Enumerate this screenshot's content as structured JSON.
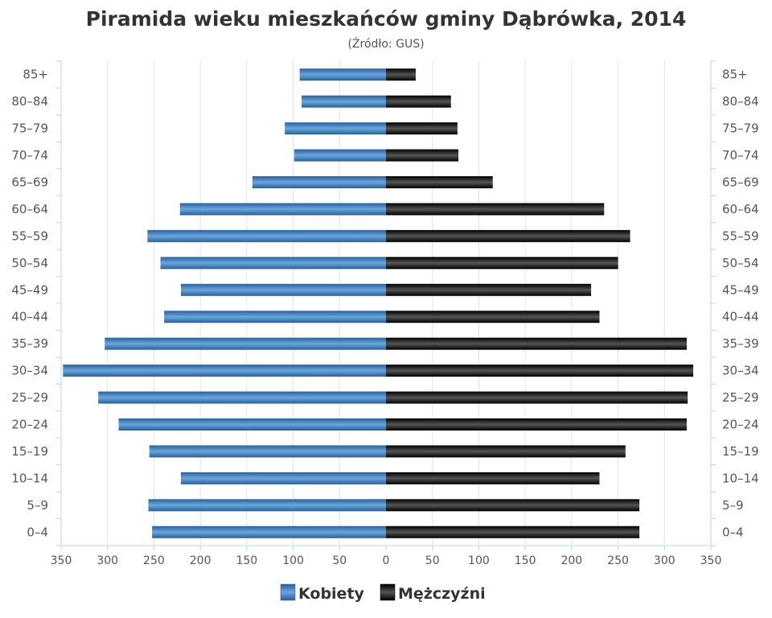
{
  "chart_data": {
    "type": "bar",
    "orientation": "horizontal-pyramid",
    "title": "Piramida wieku mieszkańców gminy Dąbrówka, 2014",
    "subtitle": "(Źródło: GUS)",
    "categories": [
      "85+",
      "80–84",
      "75–79",
      "70–74",
      "65–69",
      "60–64",
      "55–59",
      "50–54",
      "45–49",
      "40–44",
      "35–39",
      "30–34",
      "25–29",
      "20–24",
      "15–19",
      "10–14",
      "5–9",
      "0–4"
    ],
    "series": [
      {
        "name": "Kobiety",
        "side": "left",
        "color": "#3a78b8",
        "values": [
          93,
          91,
          109,
          99,
          144,
          222,
          257,
          243,
          221,
          239,
          303,
          348,
          310,
          288,
          255,
          221,
          256,
          252
        ]
      },
      {
        "name": "Mężczyźni",
        "side": "right",
        "color": "#111111",
        "values": [
          32,
          70,
          77,
          78,
          115,
          235,
          263,
          250,
          221,
          230,
          324,
          331,
          325,
          324,
          258,
          230,
          273,
          273
        ]
      }
    ],
    "xlim": [
      -350,
      350
    ],
    "xticks": [
      "350",
      "300",
      "250",
      "200",
      "150",
      "100",
      "50",
      "0",
      "50",
      "100",
      "150",
      "200",
      "250",
      "300",
      "350"
    ],
    "grid": true,
    "legend_position": "bottom-center"
  }
}
